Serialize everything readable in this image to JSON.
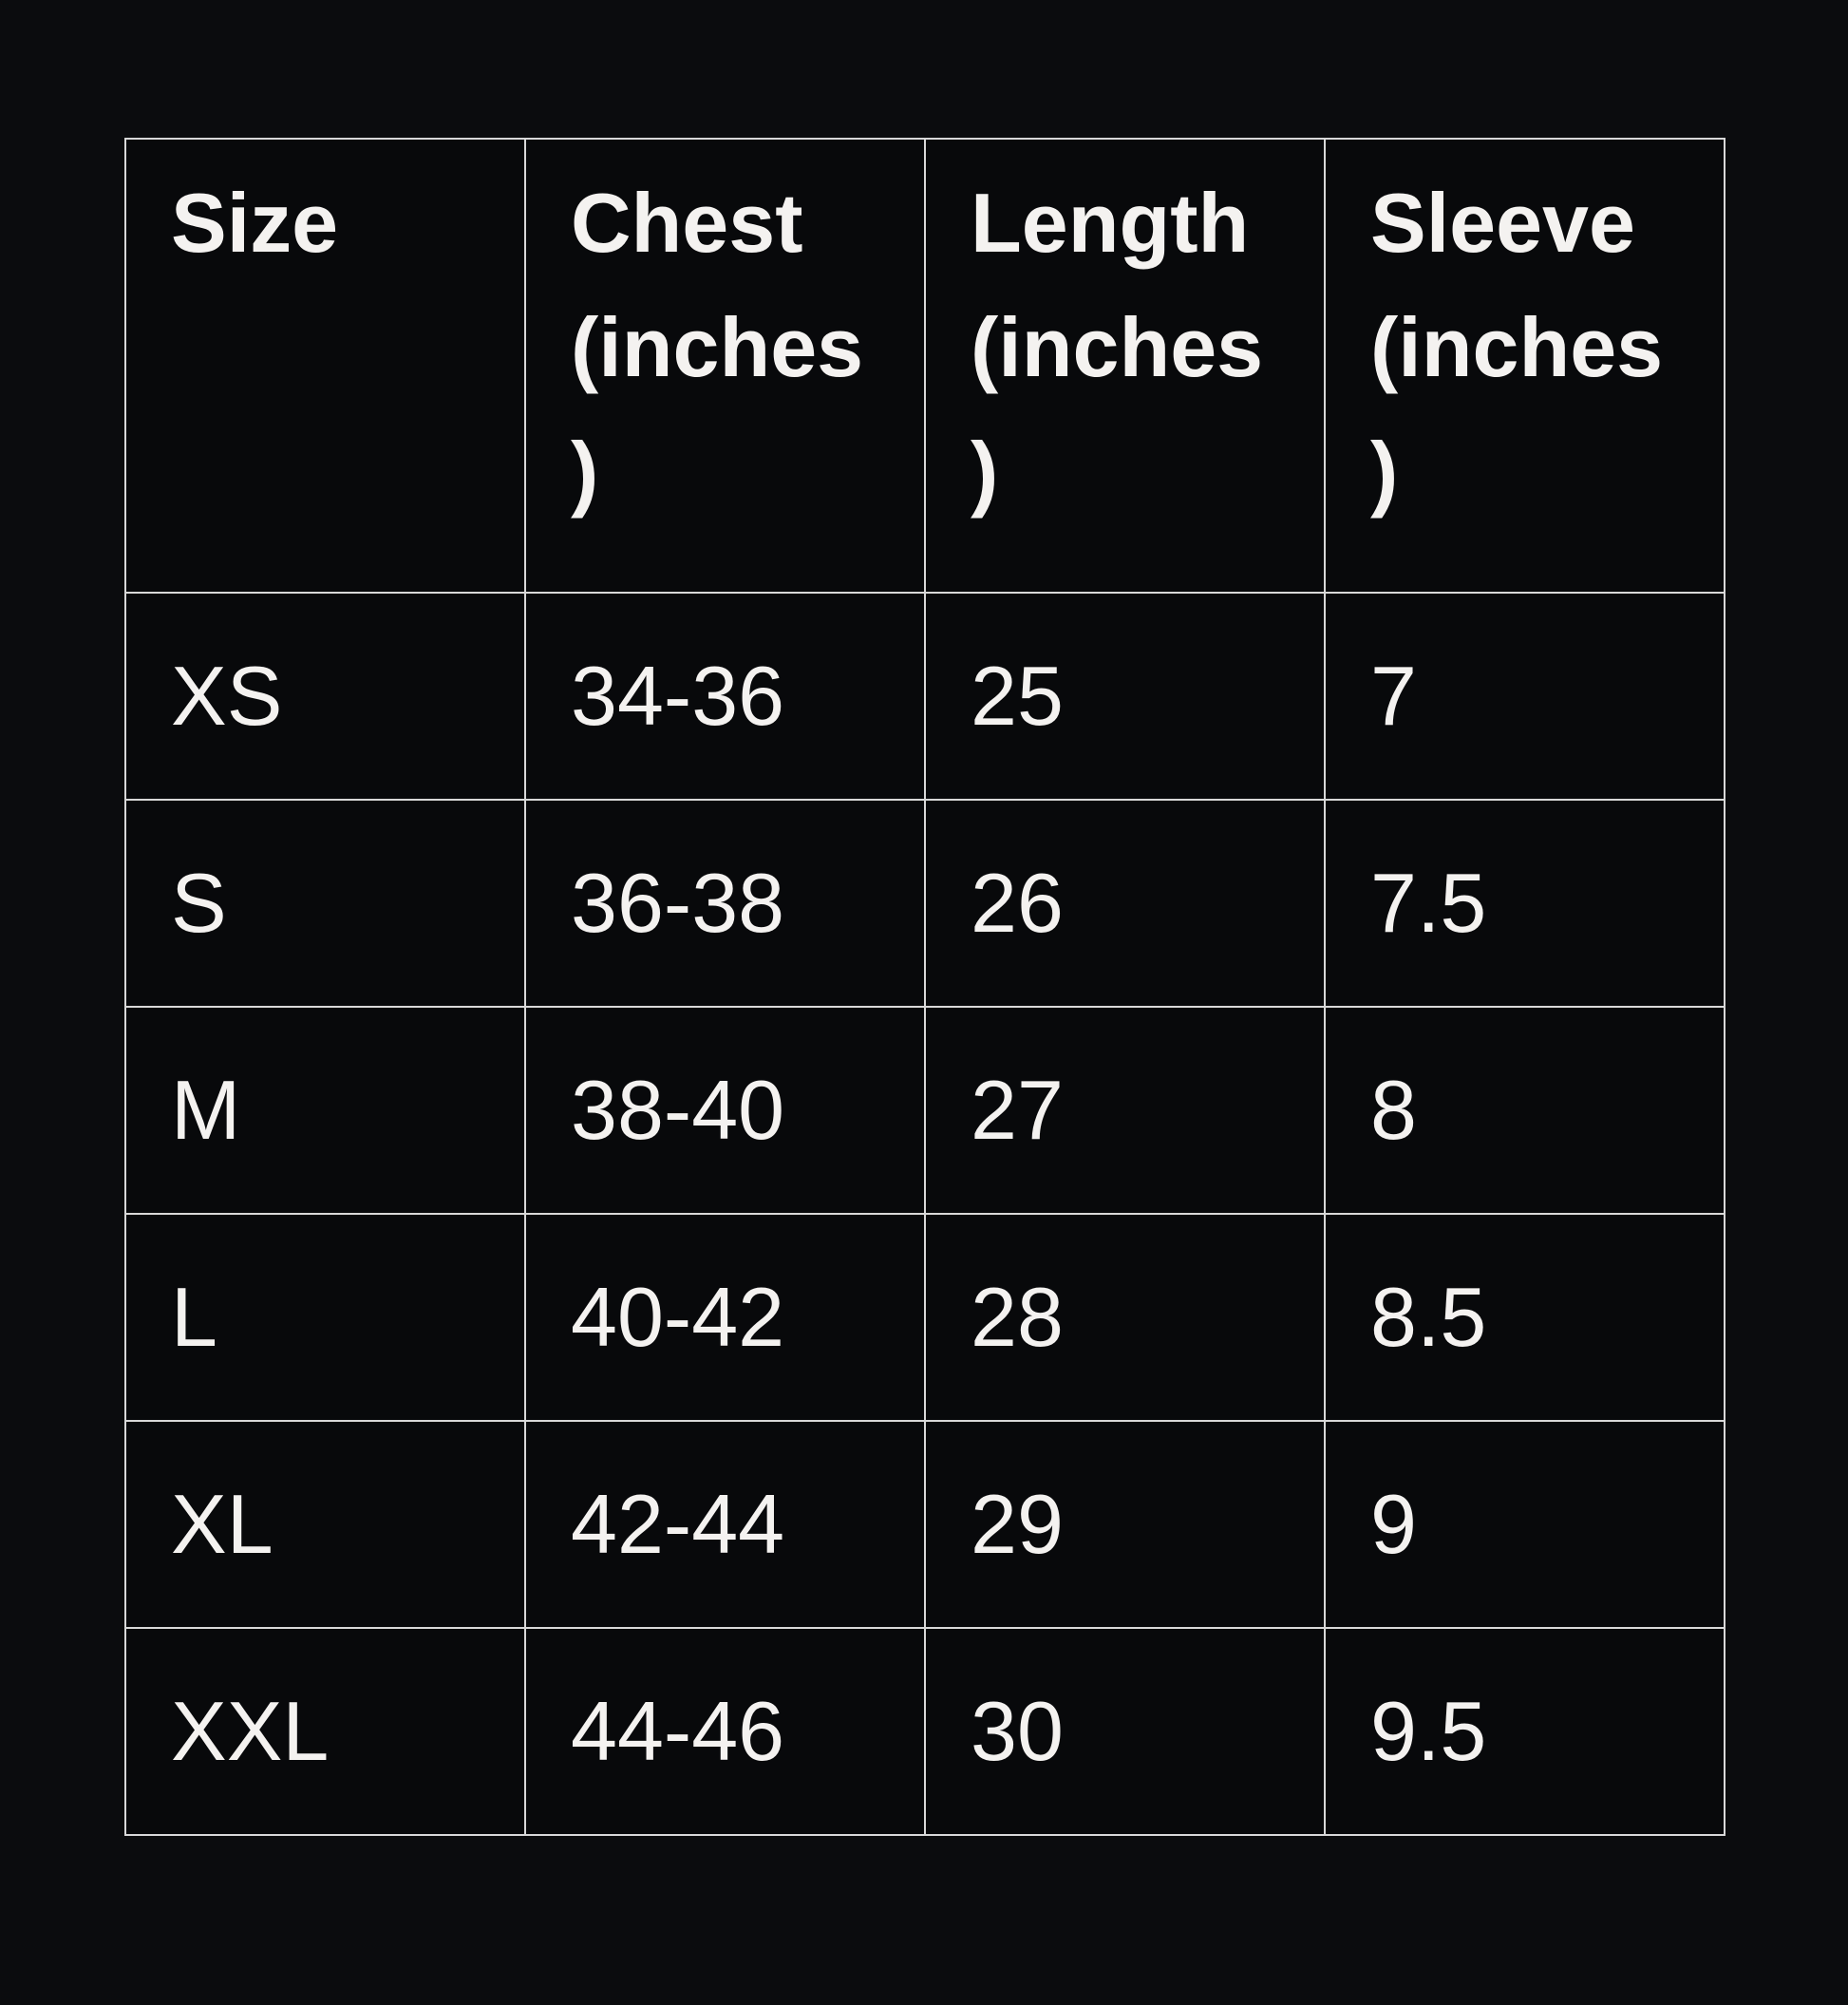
{
  "table": {
    "headers": [
      "Size",
      "Chest (inches)",
      "Length (inches)",
      "Sleeve (inches)"
    ],
    "rows": [
      [
        "XS",
        "34-36",
        "25",
        "7"
      ],
      [
        "S",
        "36-38",
        "26",
        "7.5"
      ],
      [
        "M",
        "38-40",
        "27",
        "8"
      ],
      [
        "L",
        "40-42",
        "28",
        "8.5"
      ],
      [
        "XL",
        "42-44",
        "29",
        "9"
      ],
      [
        "XXL",
        "44-46",
        "30",
        "9.5"
      ]
    ]
  }
}
